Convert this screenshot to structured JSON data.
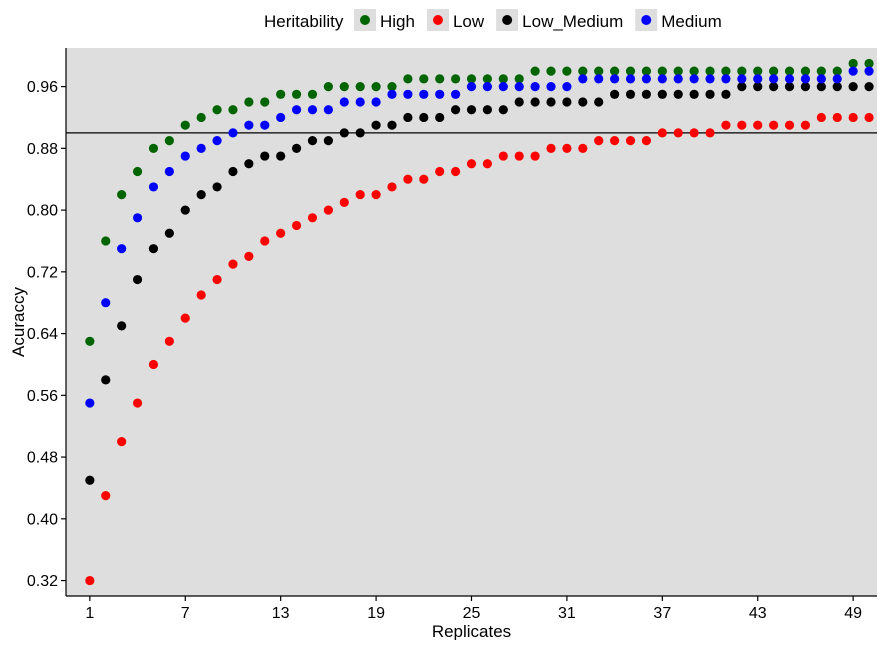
{
  "chart_data": {
    "type": "scatter",
    "title": "",
    "xlabel": "Replicates",
    "ylabel": "Acuraccy",
    "x_ticks": [
      1,
      7,
      13,
      19,
      25,
      31,
      37,
      43,
      49
    ],
    "y_ticks": [
      "0.32",
      "0.40",
      "0.48",
      "0.56",
      "0.64",
      "0.72",
      "0.80",
      "0.88",
      "0.96"
    ],
    "xlim": [
      -0.5,
      50.5
    ],
    "ylim": [
      0.3,
      1.01
    ],
    "grid": false,
    "background_color": "#dedede",
    "reference_line": {
      "y": 0.9,
      "color": "#000000"
    },
    "legend": {
      "title": "Heritability",
      "position": "top"
    },
    "x": [
      1,
      2,
      3,
      4,
      5,
      6,
      7,
      8,
      9,
      10,
      11,
      12,
      13,
      14,
      15,
      16,
      17,
      18,
      19,
      20,
      21,
      22,
      23,
      24,
      25,
      26,
      27,
      28,
      29,
      30,
      31,
      32,
      33,
      34,
      35,
      36,
      37,
      38,
      39,
      40,
      41,
      42,
      43,
      44,
      45,
      46,
      47,
      48,
      49,
      50
    ],
    "series": [
      {
        "name": "High",
        "color": "#006400",
        "values": [
          0.63,
          0.76,
          0.82,
          0.85,
          0.88,
          0.89,
          0.91,
          0.92,
          0.93,
          0.93,
          0.94,
          0.94,
          0.95,
          0.95,
          0.95,
          0.96,
          0.96,
          0.96,
          0.96,
          0.96,
          0.97,
          0.97,
          0.97,
          0.97,
          0.97,
          0.97,
          0.97,
          0.97,
          0.98,
          0.98,
          0.98,
          0.98,
          0.98,
          0.98,
          0.98,
          0.98,
          0.98,
          0.98,
          0.98,
          0.98,
          0.98,
          0.98,
          0.98,
          0.98,
          0.98,
          0.98,
          0.98,
          0.98,
          0.99,
          0.99
        ]
      },
      {
        "name": "Low",
        "color": "#ff0000",
        "values": [
          0.32,
          0.43,
          0.5,
          0.55,
          0.6,
          0.63,
          0.66,
          0.69,
          0.71,
          0.73,
          0.74,
          0.76,
          0.77,
          0.78,
          0.79,
          0.8,
          0.81,
          0.82,
          0.82,
          0.83,
          0.84,
          0.84,
          0.85,
          0.85,
          0.86,
          0.86,
          0.87,
          0.87,
          0.87,
          0.88,
          0.88,
          0.88,
          0.89,
          0.89,
          0.89,
          0.89,
          0.9,
          0.9,
          0.9,
          0.9,
          0.91,
          0.91,
          0.91,
          0.91,
          0.91,
          0.91,
          0.92,
          0.92,
          0.92,
          0.92
        ]
      },
      {
        "name": "Low_Medium",
        "color": "#000000",
        "values": [
          0.45,
          0.58,
          0.65,
          0.71,
          0.75,
          0.77,
          0.8,
          0.82,
          0.83,
          0.85,
          0.86,
          0.87,
          0.87,
          0.88,
          0.89,
          0.89,
          0.9,
          0.9,
          0.91,
          0.91,
          0.92,
          0.92,
          0.92,
          0.93,
          0.93,
          0.93,
          0.93,
          0.94,
          0.94,
          0.94,
          0.94,
          0.94,
          0.94,
          0.95,
          0.95,
          0.95,
          0.95,
          0.95,
          0.95,
          0.95,
          0.95,
          0.96,
          0.96,
          0.96,
          0.96,
          0.96,
          0.96,
          0.96,
          0.96,
          0.96
        ]
      },
      {
        "name": "Medium",
        "color": "#0000ff",
        "values": [
          0.55,
          0.68,
          0.75,
          0.79,
          0.83,
          0.85,
          0.87,
          0.88,
          0.89,
          0.9,
          0.91,
          0.91,
          0.92,
          0.93,
          0.93,
          0.93,
          0.94,
          0.94,
          0.94,
          0.95,
          0.95,
          0.95,
          0.95,
          0.95,
          0.96,
          0.96,
          0.96,
          0.96,
          0.96,
          0.96,
          0.96,
          0.97,
          0.97,
          0.97,
          0.97,
          0.97,
          0.97,
          0.97,
          0.97,
          0.97,
          0.97,
          0.97,
          0.97,
          0.97,
          0.97,
          0.97,
          0.97,
          0.97,
          0.98,
          0.98
        ]
      }
    ]
  }
}
